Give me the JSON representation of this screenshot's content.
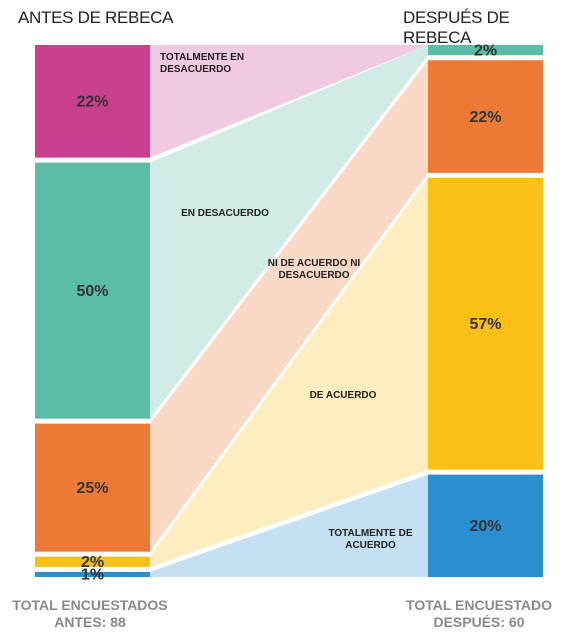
{
  "chart_data": {
    "type": "alluvial",
    "categories": [
      "ANTES DE REBECA",
      "DESPUÉS DE REBECA"
    ],
    "series": [
      {
        "name": "TOTALMENTE EN DESACUERDO",
        "color": "#c9408f",
        "values": [
          22,
          0
        ],
        "value_labels": [
          "22%",
          null
        ]
      },
      {
        "name": "EN DESACUERDO",
        "color": "#5bbca8",
        "values": [
          50,
          2
        ],
        "value_labels": [
          "50%",
          "2%"
        ]
      },
      {
        "name": "NI DE ACUERDO NI DESACUERDO",
        "color": "#ec7a35",
        "values": [
          25,
          22
        ],
        "value_labels": [
          "25%",
          "22%"
        ]
      },
      {
        "name": "DE ACUERDO",
        "color": "#fbc015",
        "values": [
          2,
          57
        ],
        "value_labels": [
          "2%",
          "57%"
        ]
      },
      {
        "name": "TOTALMENTE DE ACUERDO",
        "color": "#2a8fcf",
        "values": [
          1,
          20
        ],
        "value_labels": [
          "1%",
          "20%"
        ]
      }
    ],
    "totals": [
      [
        "TOTAL ENCUESTADOS",
        "ANTES: 88"
      ],
      [
        "TOTAL ENCUESTADO",
        "DESPUÉS: 60"
      ]
    ]
  }
}
